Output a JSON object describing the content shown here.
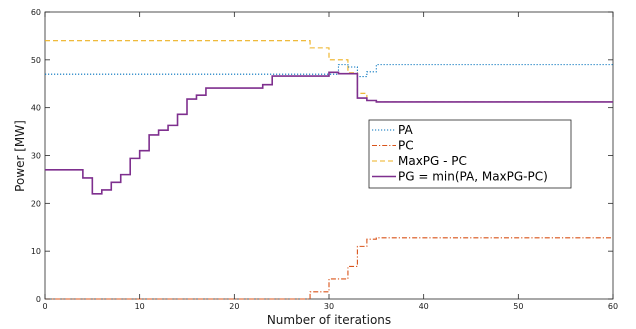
{
  "chart_data": {
    "type": "line",
    "title": "",
    "xlabel": "Number of iterations",
    "ylabel": "Power [MW]",
    "xlim": [
      0,
      60
    ],
    "ylim": [
      0,
      60
    ],
    "x_ticks": [
      0,
      10,
      20,
      30,
      40,
      50,
      60
    ],
    "y_ticks": [
      0,
      10,
      20,
      30,
      40,
      50,
      60
    ],
    "grid": false,
    "legend_position": "center-right",
    "step": true,
    "series": [
      {
        "name": "PA",
        "color": "#0072BD",
        "style": "dotted",
        "x": [
          0,
          30,
          31,
          32,
          33,
          34,
          35,
          60
        ],
        "y": [
          47,
          47,
          49,
          48.5,
          46.5,
          47.5,
          49,
          49
        ]
      },
      {
        "name": "PC",
        "color": "#D95319",
        "style": "dashdot",
        "x": [
          0,
          27,
          28,
          29,
          30,
          31,
          32,
          33,
          34,
          35,
          60
        ],
        "y": [
          0,
          0,
          1.5,
          1.5,
          4.2,
          4.2,
          6.8,
          11,
          12.5,
          12.8,
          12.8
        ]
      },
      {
        "name": "MaxPG - PC",
        "color": "#EDB120",
        "style": "dashed",
        "x": [
          0,
          27,
          28,
          29,
          30,
          31,
          32,
          33,
          34,
          35,
          60
        ],
        "y": [
          54,
          54,
          52.5,
          52.5,
          50,
          50,
          47.3,
          43,
          41.5,
          41.2,
          41.2
        ]
      },
      {
        "name": "PG = min(PA, MaxPG-PC)",
        "color": "#7E2F8E",
        "style": "solid",
        "x": [
          0,
          1,
          2,
          3,
          4,
          5,
          6,
          7,
          8,
          9,
          10,
          11,
          12,
          13,
          14,
          15,
          16,
          17,
          18,
          19,
          20,
          21,
          22,
          23,
          24,
          25,
          26,
          27,
          28,
          29,
          30,
          31,
          32,
          33,
          34,
          35,
          60
        ],
        "y": [
          27,
          27,
          27,
          27,
          25.3,
          22,
          22.8,
          24.4,
          26,
          29.4,
          31,
          34.3,
          35.3,
          36.3,
          38.6,
          41.8,
          42.6,
          44.1,
          44.1,
          44.1,
          44.1,
          44.1,
          44.1,
          44.8,
          46.6,
          46.6,
          46.6,
          46.6,
          46.6,
          46.6,
          47.4,
          47.1,
          47.1,
          42,
          41.5,
          41.2,
          41.2
        ]
      }
    ]
  }
}
